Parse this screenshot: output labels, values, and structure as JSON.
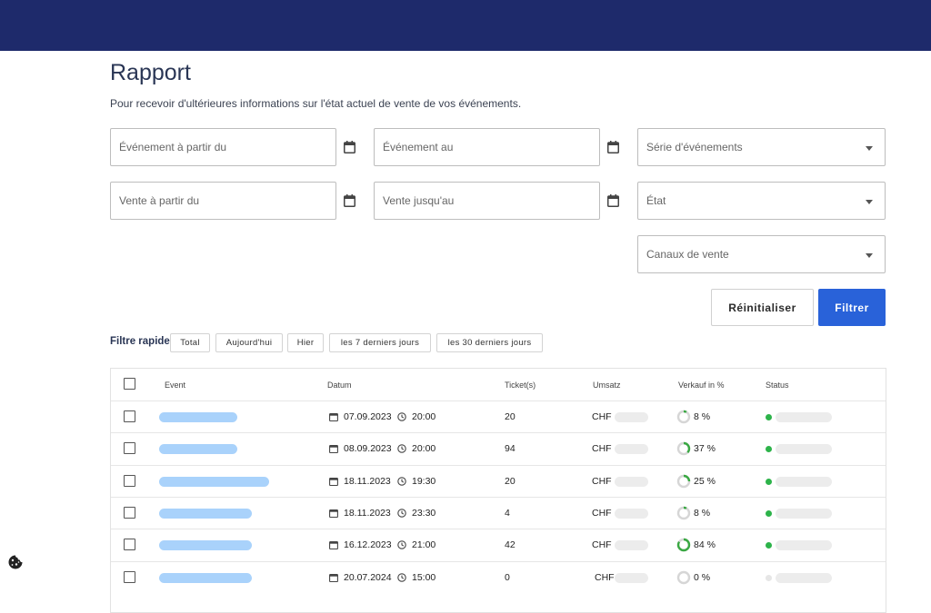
{
  "header": {
    "title": "Rapport",
    "subtitle": "Pour recevoir d'ultérieures informations sur l'état actuel de vente de vos événements."
  },
  "filters": {
    "event_from": "Événement à partir du",
    "event_to": "Événement au",
    "event_series": "Série d'événements",
    "sale_from": "Vente à partir du",
    "sale_to": "Vente jusqu'au",
    "state": "État",
    "sales_channels": "Canaux de vente",
    "reset_label": "Réinitialiser",
    "filter_label": "Filtrer"
  },
  "quick_filter": {
    "label": "Filtre rapide",
    "chips": [
      "Total",
      "Aujourd'hui",
      "Hier",
      "les 7 derniers jours",
      "les 30 derniers jours"
    ]
  },
  "table": {
    "columns": [
      "Event",
      "Datum",
      "Ticket(s)",
      "Umsatz",
      "Verkauf in %",
      "Status"
    ],
    "rows": [
      {
        "date": "07.09.2023",
        "time": "20:00",
        "tickets": "20",
        "currency": "CHF",
        "percent": "8 %",
        "pct": 8,
        "status": "active"
      },
      {
        "date": "08.09.2023",
        "time": "20:00",
        "tickets": "94",
        "currency": "CHF",
        "percent": "37 %",
        "pct": 37,
        "status": "active"
      },
      {
        "date": "18.11.2023",
        "time": "19:30",
        "tickets": "20",
        "currency": "CHF",
        "percent": "25 %",
        "pct": 25,
        "status": "active"
      },
      {
        "date": "18.11.2023",
        "time": "23:30",
        "tickets": "4",
        "currency": "CHF",
        "percent": "8 %",
        "pct": 8,
        "status": "active"
      },
      {
        "date": "16.12.2023",
        "time": "21:00",
        "tickets": "42",
        "currency": "CHF",
        "percent": "84 %",
        "pct": 84,
        "status": "active"
      },
      {
        "date": "20.07.2024",
        "time": "15:00",
        "tickets": "0",
        "currency": "CHF",
        "percent": "0 %",
        "pct": 0,
        "status": "inactive"
      }
    ]
  },
  "colors": {
    "topbar": "#1e2a6b",
    "accent": "#2962d9",
    "status_active": "#2db34a",
    "status_inactive": "#e6e6e6",
    "progress": "#3aa843"
  },
  "icons": {
    "date_picker": "calendar-icon",
    "dropdown": "chevron-down-icon",
    "time": "clock-icon",
    "cookie": "cookie-icon"
  }
}
